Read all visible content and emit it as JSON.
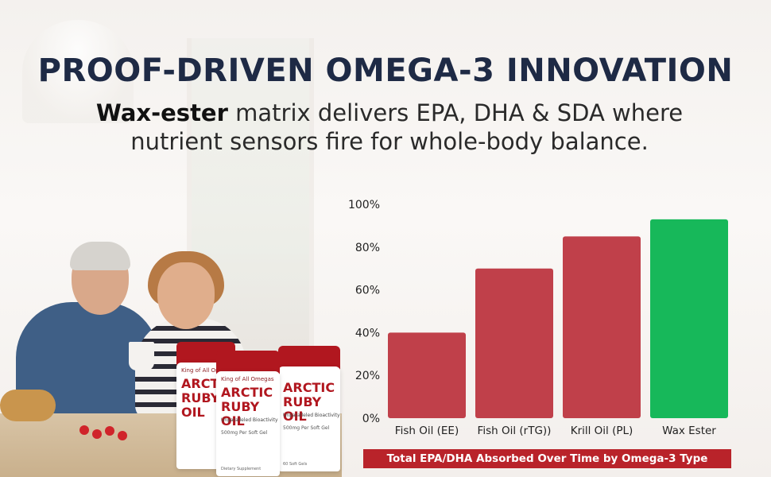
{
  "header": {
    "title": "PROOF-DRIVEN OMEGA-3 INNOVATION",
    "subtitle_bold": "Wax-ester",
    "subtitle_rest_line1": " matrix delivers EPA, DHA & SDA where",
    "subtitle_line2": "nutrient sensors fire for whole-body balance."
  },
  "product": {
    "brand": "King of All Omegas",
    "name_line1": "ARCTIC",
    "name_line2": "RUBY OIL",
    "tagline": "Unparalleled Bioactivity",
    "dose": "500mg Per Soft Gel",
    "footer_left": "Dietary Supplement",
    "footer_right": "60 Soft Gels"
  },
  "chart_data": {
    "type": "bar",
    "categories": [
      "Fish Oil (EE)",
      "Fish Oil (rTG))",
      "Krill Oil (PL)",
      "Wax Ester"
    ],
    "values": [
      40,
      70,
      85,
      93
    ],
    "colors": [
      "#c0404a",
      "#c0404a",
      "#c0404a",
      "#17b85a"
    ],
    "ylim": [
      0,
      100
    ],
    "yticks": [
      "0%",
      "20%",
      "40%",
      "60%",
      "80%",
      "100%"
    ],
    "caption": "Total EPA/DHA Absorbed Over Time by Omega-3 Type",
    "grid": false,
    "legend": "none"
  }
}
